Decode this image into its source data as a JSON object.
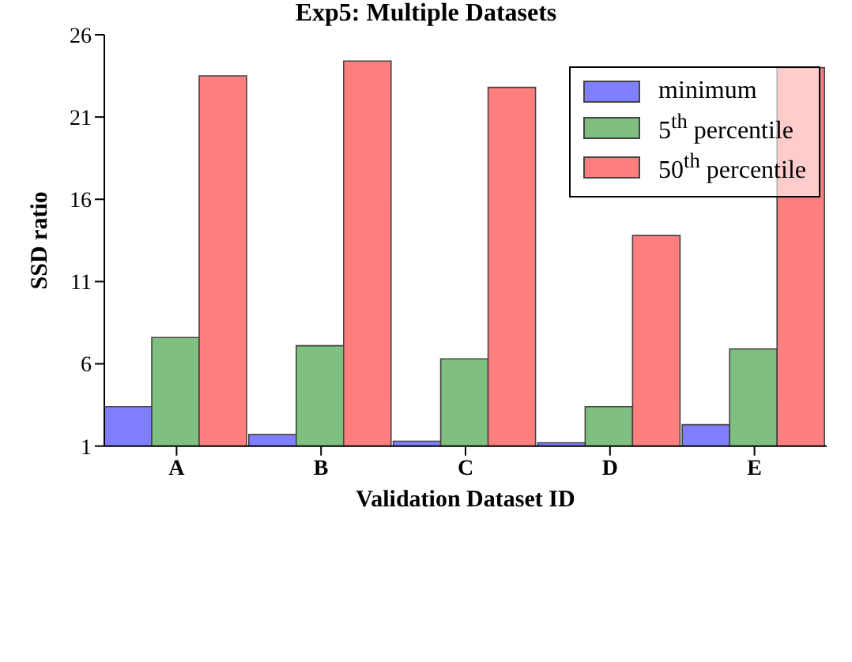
{
  "chart_data": {
    "type": "bar",
    "title": "Exp5: Multiple Datasets",
    "xlabel": "Validation Dataset ID",
    "ylabel": "SSD ratio",
    "categories": [
      "A",
      "B",
      "C",
      "D",
      "E"
    ],
    "series": [
      {
        "name": "minimum",
        "color": "#7f7fff",
        "values": [
          3.4,
          1.7,
          1.3,
          1.2,
          2.3
        ]
      },
      {
        "name": "5$^{th}$ percentile",
        "color": "#7fbf7f",
        "values": [
          7.6,
          7.1,
          6.3,
          3.4,
          6.9
        ]
      },
      {
        "name": "50$^{th}$ percentile",
        "color": "#ff7f7f",
        "values": [
          23.5,
          24.4,
          22.8,
          13.8,
          24.0
        ]
      }
    ],
    "ylim": [
      1,
      26
    ],
    "yticks": [
      1,
      6,
      11,
      16,
      21,
      26
    ],
    "grid": false,
    "legend": "top right"
  }
}
